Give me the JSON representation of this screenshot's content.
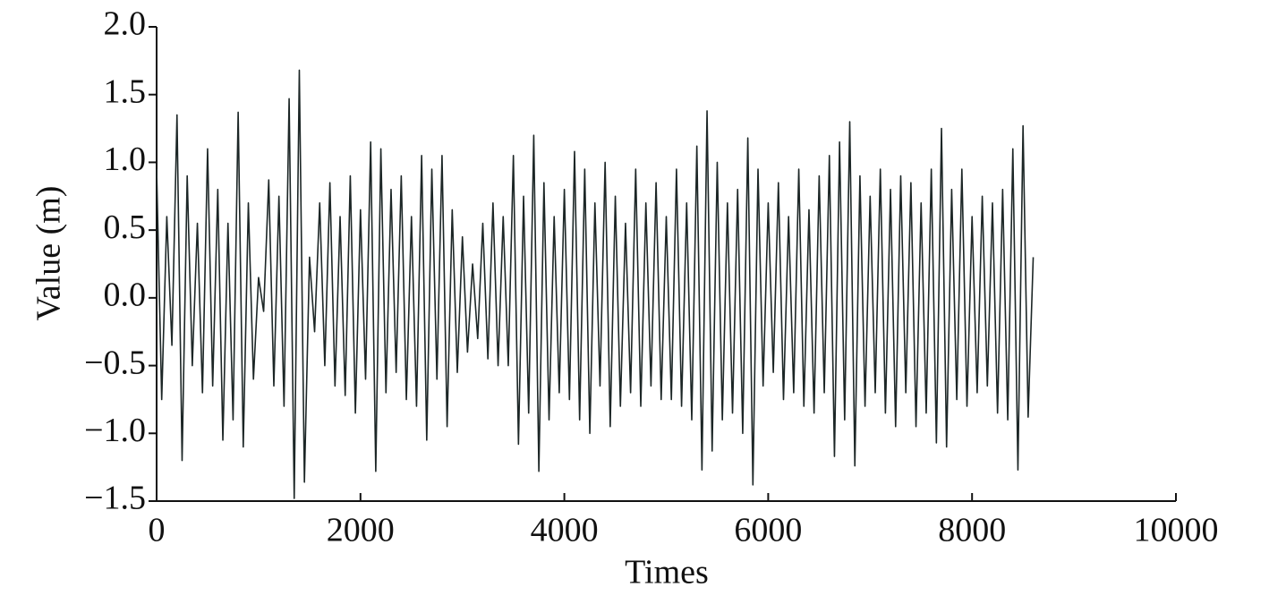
{
  "chart_data": {
    "type": "line",
    "x_label": "Times",
    "y_label": "Value (m)",
    "color": "#1c2626",
    "xlim": [
      0,
      10000
    ],
    "xticks": [
      0,
      2000,
      4000,
      6000,
      8000,
      10000
    ],
    "ylim": [
      -1.5,
      2.0
    ],
    "yticks": [
      {
        "value": -1.5,
        "label": "−1.5"
      },
      {
        "value": -1.0,
        "label": "−1.0"
      },
      {
        "value": -0.5,
        "label": "−0.5"
      },
      {
        "value": 0,
        "label": "0.0"
      },
      {
        "value": 0.5,
        "label": "0.5"
      },
      {
        "value": 1.0,
        "label": "1.0"
      },
      {
        "value": 1.5,
        "label": "1.5"
      },
      {
        "value": 2.0,
        "label": "2.0"
      }
    ],
    "x": [
      0,
      50,
      100,
      150,
      200,
      250,
      300,
      350,
      400,
      450,
      500,
      550,
      600,
      650,
      700,
      750,
      800,
      850,
      900,
      950,
      1000,
      1050,
      1100,
      1150,
      1200,
      1250,
      1300,
      1350,
      1400,
      1450,
      1500,
      1550,
      1600,
      1650,
      1700,
      1750,
      1800,
      1850,
      1900,
      1950,
      2000,
      2050,
      2100,
      2150,
      2200,
      2250,
      2300,
      2350,
      2400,
      2450,
      2500,
      2550,
      2600,
      2650,
      2700,
      2750,
      2800,
      2850,
      2900,
      2950,
      3000,
      3050,
      3100,
      3150,
      3200,
      3250,
      3300,
      3350,
      3400,
      3450,
      3500,
      3550,
      3600,
      3650,
      3700,
      3750,
      3800,
      3850,
      3900,
      3950,
      4000,
      4050,
      4100,
      4150,
      4200,
      4250,
      4300,
      4350,
      4400,
      4450,
      4500,
      4550,
      4600,
      4650,
      4700,
      4750,
      4800,
      4850,
      4900,
      4950,
      5000,
      5050,
      5100,
      5150,
      5200,
      5250,
      5300,
      5350,
      5400,
      5450,
      5500,
      5550,
      5600,
      5650,
      5700,
      5750,
      5800,
      5850,
      5900,
      5950,
      6000,
      6050,
      6100,
      6150,
      6200,
      6250,
      6300,
      6350,
      6400,
      6450,
      6500,
      6550,
      6600,
      6650,
      6700,
      6750,
      6800,
      6850,
      6900,
      6950,
      7000,
      7050,
      7100,
      7150,
      7200,
      7250,
      7300,
      7350,
      7400,
      7450,
      7500,
      7550,
      7600,
      7650,
      7700,
      7750,
      7800,
      7850,
      7900,
      7950,
      8000,
      8050,
      8100,
      8150,
      8200,
      8250,
      8300,
      8350,
      8400,
      8450,
      8500,
      8550,
      8600
    ],
    "values": [
      0.95,
      -0.75,
      0.6,
      -0.35,
      1.35,
      -1.2,
      0.9,
      -0.5,
      0.55,
      -0.7,
      1.1,
      -0.65,
      0.8,
      -1.05,
      0.55,
      -0.9,
      1.37,
      -1.1,
      0.7,
      -0.6,
      0.15,
      -0.1,
      0.87,
      -0.65,
      0.75,
      -0.8,
      1.47,
      -1.48,
      1.68,
      -1.36,
      0.3,
      -0.25,
      0.7,
      -0.5,
      0.85,
      -0.65,
      0.6,
      -0.72,
      0.9,
      -0.85,
      0.65,
      -0.6,
      1.15,
      -1.28,
      1.1,
      -0.7,
      0.8,
      -0.55,
      0.9,
      -0.75,
      0.6,
      -0.8,
      1.05,
      -1.05,
      0.95,
      -0.6,
      1.05,
      -0.95,
      0.65,
      -0.55,
      0.45,
      -0.4,
      0.25,
      -0.3,
      0.55,
      -0.45,
      0.7,
      -0.5,
      0.6,
      -0.5,
      1.05,
      -1.08,
      0.75,
      -0.85,
      1.2,
      -1.28,
      0.85,
      -0.9,
      0.6,
      -0.7,
      0.8,
      -0.75,
      1.08,
      -0.9,
      0.95,
      -1.0,
      0.7,
      -0.65,
      1.0,
      -0.95,
      0.75,
      -0.8,
      0.55,
      -0.7,
      0.95,
      -0.8,
      0.7,
      -0.65,
      0.85,
      -0.75,
      0.6,
      -0.75,
      0.95,
      -0.8,
      0.7,
      -0.9,
      1.12,
      -1.27,
      1.38,
      -1.13,
      1.0,
      -0.9,
      0.7,
      -0.85,
      0.8,
      -1.0,
      1.18,
      -1.38,
      0.95,
      -0.65,
      0.7,
      -0.55,
      0.85,
      -0.75,
      0.6,
      -0.7,
      0.95,
      -0.8,
      0.65,
      -0.85,
      0.9,
      -0.7,
      1.05,
      -1.17,
      1.15,
      -0.9,
      1.3,
      -1.24,
      0.9,
      -0.8,
      0.75,
      -0.7,
      0.95,
      -0.85,
      0.8,
      -0.95,
      0.9,
      -0.7,
      0.85,
      -0.95,
      0.7,
      -0.85,
      0.95,
      -1.07,
      1.25,
      -1.1,
      0.8,
      -0.75,
      0.95,
      -0.8,
      0.6,
      -0.7,
      0.75,
      -0.65,
      0.7,
      -0.85,
      0.8,
      -0.9,
      1.1,
      -1.27,
      1.27,
      -0.88,
      0.3
    ]
  }
}
